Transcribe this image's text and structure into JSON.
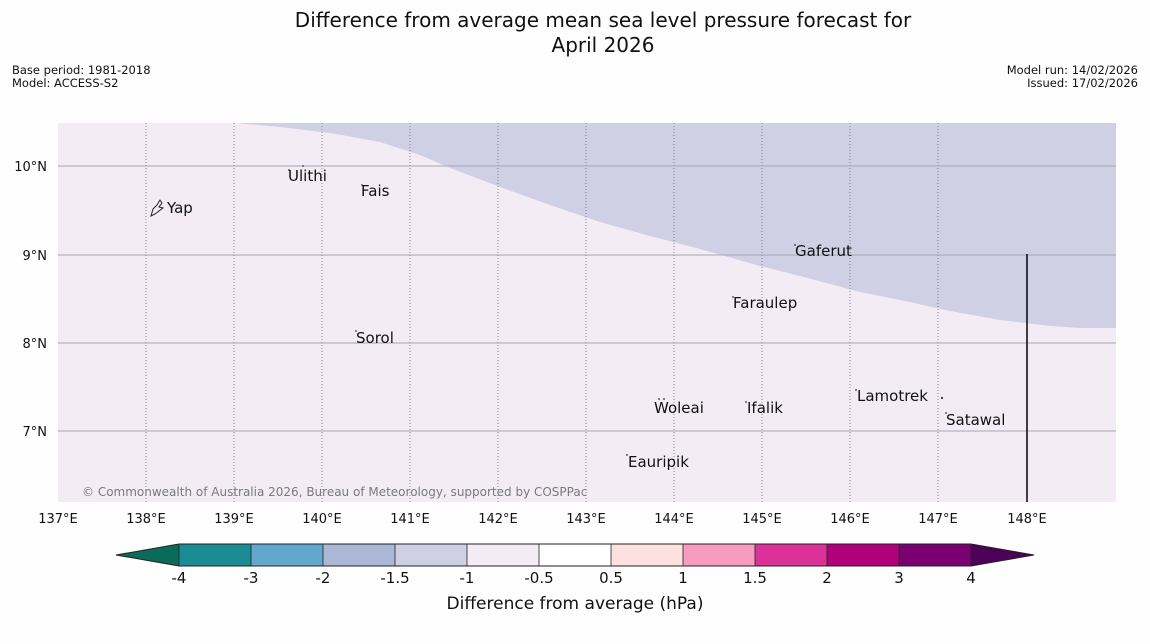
{
  "header": {
    "title_line1": "Difference from average mean sea level pressure forecast for",
    "title_line2": "April 2026",
    "base_period": "Base period: 1981-2018",
    "model": "Model: ACCESS-S2",
    "model_run": "Model run: 14/02/2026",
    "issued": "Issued: 17/02/2026"
  },
  "map": {
    "lon_labels": [
      "137°E",
      "138°E",
      "139°E",
      "140°E",
      "141°E",
      "142°E",
      "143°E",
      "144°E",
      "145°E",
      "146°E",
      "147°E",
      "148°E"
    ],
    "lat_labels": [
      "10°N",
      "9°N",
      "8°N",
      "7°N"
    ],
    "places": [
      {
        "name": "Yap"
      },
      {
        "name": "Ulithi"
      },
      {
        "name": "Fais"
      },
      {
        "name": "Gaferut"
      },
      {
        "name": "Faraulep"
      },
      {
        "name": "Sorol"
      },
      {
        "name": "Lamotrek"
      },
      {
        "name": "Woleai"
      },
      {
        "name": "Ifalik"
      },
      {
        "name": "Satawal"
      },
      {
        "name": "Eauripik"
      }
    ],
    "copyright": "© Commonwealth of Australia 2026, Bureau of Meteorology, supported by COSPPac"
  },
  "colorbar": {
    "tick_labels": [
      "-4",
      "-3",
      "-2",
      "-1.5",
      "-1",
      "-0.5",
      "0.5",
      "1",
      "1.5",
      "2",
      "3",
      "4"
    ],
    "colors": [
      "#0a6b58",
      "#1b8c94",
      "#62a7cc",
      "#aab8d6",
      "#d0d0e4",
      "#f3ecf5",
      "#ffffff",
      "#fde0e0",
      "#f79bbf",
      "#dc3199",
      "#b0007a",
      "#7a0072",
      "#4d0057"
    ],
    "label": "Difference from average (hPa)"
  }
}
